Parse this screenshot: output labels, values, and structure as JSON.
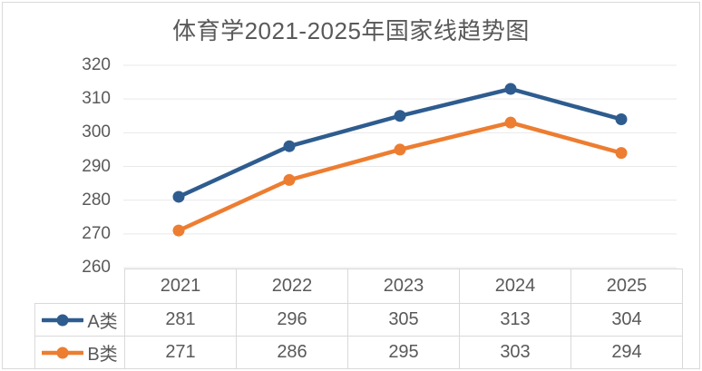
{
  "chart_data": {
    "type": "line",
    "title": "体育学2021-2025年国家线趋势图",
    "categories": [
      "2021",
      "2022",
      "2023",
      "2024",
      "2025"
    ],
    "series": [
      {
        "name": "A类",
        "color": "#2E5C8F",
        "values": [
          281,
          296,
          305,
          313,
          304
        ]
      },
      {
        "name": "B类",
        "color": "#ED7D31",
        "values": [
          271,
          286,
          295,
          303,
          294
        ]
      }
    ],
    "ylim": [
      260,
      320
    ],
    "ytick_step": 10,
    "y_ticks": [
      320,
      310,
      300,
      290,
      280,
      270,
      260
    ],
    "grid": true,
    "legend_position": "data-table-left",
    "data_table": true
  },
  "colors": {
    "text": "#595959",
    "border": "#D9D9D9",
    "gridline": "#E9E9E9",
    "background": "#FFFFFF"
  }
}
